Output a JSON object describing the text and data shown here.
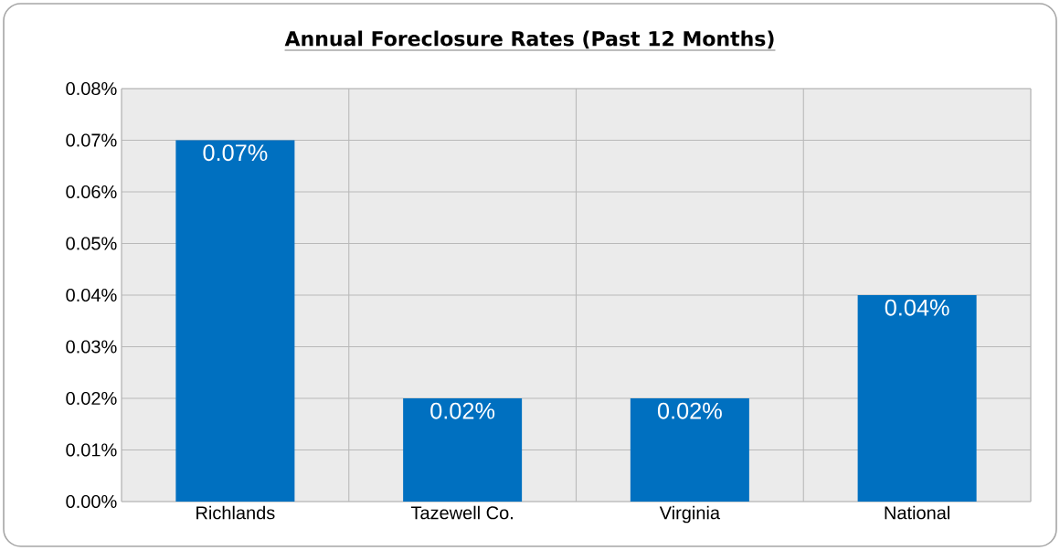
{
  "chart_data": {
    "type": "bar",
    "title": "Annual Foreclosure Rates (Past 12 Months)",
    "categories": [
      "Richlands",
      "Tazewell Co.",
      "Virginia",
      "National"
    ],
    "values": [
      0.07,
      0.02,
      0.02,
      0.04
    ],
    "value_labels": [
      "0.07%",
      "0.02%",
      "0.02%",
      "0.04%"
    ],
    "color": "#0070c0",
    "ylim": [
      0,
      0.08
    ],
    "yticks": [
      {
        "value": 0,
        "label": "0.00%"
      },
      {
        "value": 0.01,
        "label": "0.01%"
      },
      {
        "value": 0.02,
        "label": "0.02%"
      },
      {
        "value": 0.03,
        "label": "0.03%"
      },
      {
        "value": 0.04,
        "label": "0.04%"
      },
      {
        "value": 0.05,
        "label": "0.05%"
      },
      {
        "value": 0.06,
        "label": "0.06%"
      },
      {
        "value": 0.07,
        "label": "0.07%"
      },
      {
        "value": 0.08,
        "label": "0.08%"
      }
    ],
    "grid": true
  }
}
